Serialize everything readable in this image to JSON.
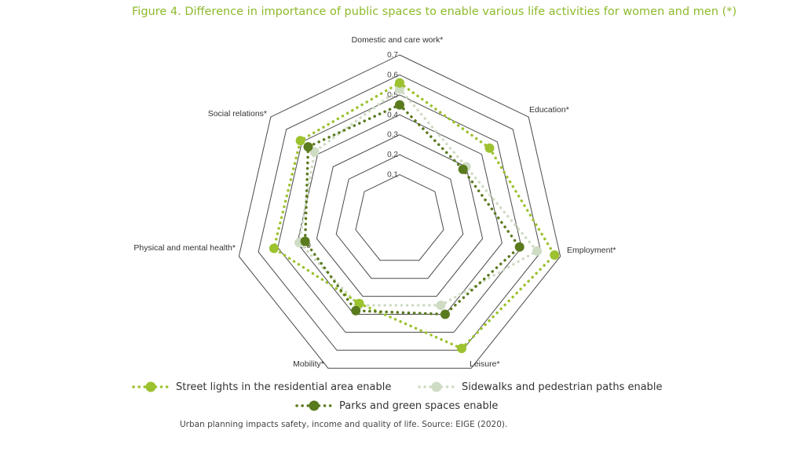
{
  "title": "Figure 4. Difference in importance of public spaces to enable various life activities for women and men (*)",
  "caption": "Urban planning impacts safety, income and quality of life. Source: EIGE (2020).",
  "colors": {
    "title": "#8dba2b",
    "grid": "#4a4a4a",
    "street": "#9cc22f",
    "sidewalk": "#cfdcc4",
    "parks": "#5a7a1e"
  },
  "chart_data": {
    "type": "radar",
    "title": "Figure 4. Difference in importance of public spaces to enable various life activities for women and men (*)",
    "categories": [
      "Domestic and care work*",
      "Education*",
      "Employment*",
      "Leisure*",
      "Mobility*",
      "Physical and mental health*",
      "Social relations*"
    ],
    "rmin": 0.0,
    "rmax": 0.7,
    "ticks": [
      "0.0",
      "0.1",
      "0.2",
      "0.3",
      "0.4",
      "0.5",
      "0.6",
      "0.7"
    ],
    "grid": true,
    "legend_position": "bottom",
    "series": [
      {
        "name": "Street lights in the residential area enable",
        "color": "#9cc22f",
        "values": [
          0.56,
          0.45,
          0.67,
          0.59,
          0.34,
          0.52,
          0.51
        ]
      },
      {
        "name": "Sidewalks and pedestrian paths enable",
        "color": "#cfdcc4",
        "values": [
          0.53,
          0.3,
          0.58,
          0.35,
          0.35,
          0.39,
          0.42
        ]
      },
      {
        "name": "Parks and green spaces enable",
        "color": "#5a7a1e",
        "values": [
          0.45,
          0.28,
          0.49,
          0.4,
          0.38,
          0.36,
          0.46
        ]
      }
    ]
  }
}
